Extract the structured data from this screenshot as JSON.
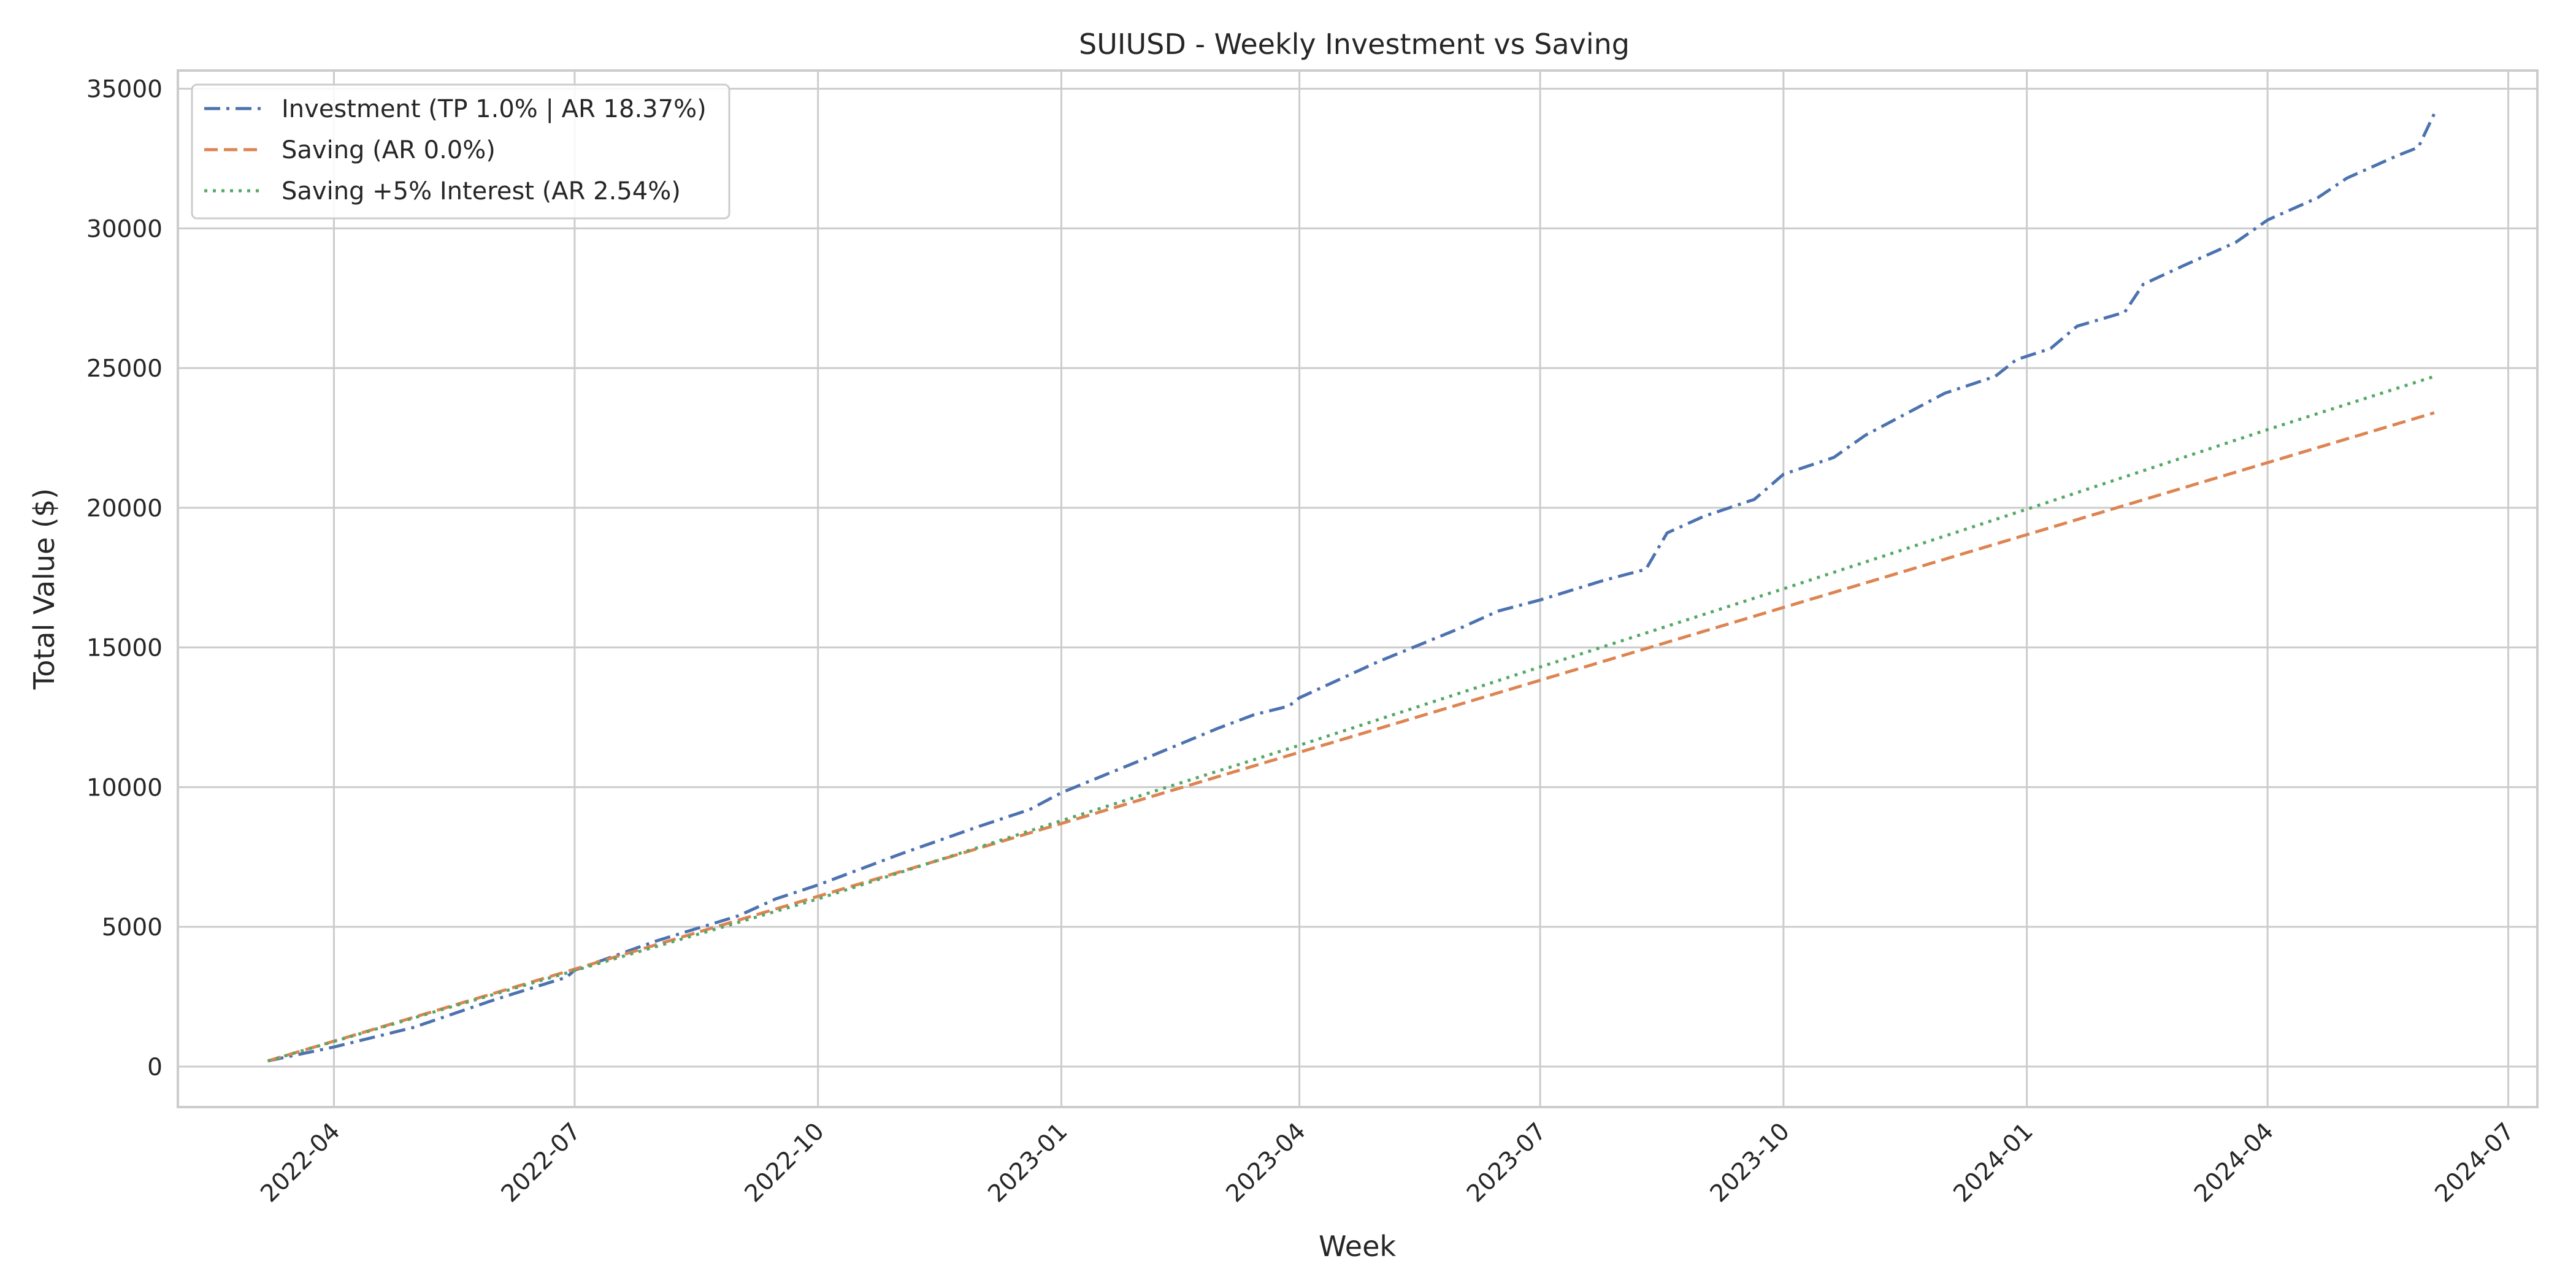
{
  "chart_data": {
    "type": "line",
    "title": "SUIUSD - Weekly Investment vs Saving",
    "xlabel": "Week",
    "ylabel": "Total Value ($)",
    "x_type": "date",
    "xlim": [
      "2022-02-01",
      "2024-07-12"
    ],
    "ylim": [
      -1450,
      35650
    ],
    "x_ticks": [
      "2022-04",
      "2022-07",
      "2022-10",
      "2023-01",
      "2023-04",
      "2023-07",
      "2023-10",
      "2024-01",
      "2024-04",
      "2024-07"
    ],
    "y_ticks": [
      0,
      5000,
      10000,
      15000,
      20000,
      25000,
      30000,
      35000
    ],
    "grid": true,
    "legend_position": "top-left",
    "series": [
      {
        "name": "Investment (TP 1.0% | AR 18.37%)",
        "color": "#4c72b0",
        "line_style": "dashdot",
        "points": [
          [
            "2022-03-07",
            200
          ],
          [
            "2022-04-01",
            700
          ],
          [
            "2022-05-01",
            1400
          ],
          [
            "2022-06-01",
            2400
          ],
          [
            "2022-06-28",
            3200
          ],
          [
            "2022-07-01",
            3450
          ],
          [
            "2022-08-01",
            4500
          ],
          [
            "2022-09-01",
            5400
          ],
          [
            "2022-09-15",
            6000
          ],
          [
            "2022-10-01",
            6500
          ],
          [
            "2022-11-01",
            7600
          ],
          [
            "2022-12-01",
            8600
          ],
          [
            "2022-12-20",
            9200
          ],
          [
            "2023-01-01",
            9800
          ],
          [
            "2023-02-01",
            11000
          ],
          [
            "2023-03-01",
            12100
          ],
          [
            "2023-03-15",
            12600
          ],
          [
            "2023-03-28",
            12900
          ],
          [
            "2023-04-01",
            13200
          ],
          [
            "2023-05-01",
            14500
          ],
          [
            "2023-06-01",
            15700
          ],
          [
            "2023-06-15",
            16300
          ],
          [
            "2023-07-01",
            16700
          ],
          [
            "2023-07-25",
            17400
          ],
          [
            "2023-08-10",
            17800
          ],
          [
            "2023-08-18",
            19100
          ],
          [
            "2023-09-01",
            19700
          ],
          [
            "2023-09-20",
            20300
          ],
          [
            "2023-10-01",
            21200
          ],
          [
            "2023-10-20",
            21800
          ],
          [
            "2023-11-01",
            22600
          ],
          [
            "2023-12-01",
            24100
          ],
          [
            "2023-12-20",
            24700
          ],
          [
            "2023-12-28",
            25300
          ],
          [
            "2024-01-10",
            25700
          ],
          [
            "2024-01-20",
            26500
          ],
          [
            "2024-02-07",
            27000
          ],
          [
            "2024-02-14",
            28000
          ],
          [
            "2024-03-01",
            28700
          ],
          [
            "2024-03-20",
            29500
          ],
          [
            "2024-04-01",
            30300
          ],
          [
            "2024-04-20",
            31100
          ],
          [
            "2024-05-01",
            31800
          ],
          [
            "2024-05-20",
            32600
          ],
          [
            "2024-05-28",
            32900
          ],
          [
            "2024-06-03",
            34100
          ]
        ]
      },
      {
        "name": "Saving (AR 0.0%)",
        "color": "#dd8452",
        "line_style": "dashed",
        "points": [
          [
            "2022-03-07",
            200
          ],
          [
            "2024-06-03",
            23400
          ]
        ]
      },
      {
        "name": "Saving +5% Interest (AR 2.54%)",
        "color": "#55a868",
        "line_style": "dotted",
        "points": [
          [
            "2022-03-07",
            200
          ],
          [
            "2022-10-01",
            6000
          ],
          [
            "2023-01-01",
            8800
          ],
          [
            "2023-04-01",
            11500
          ],
          [
            "2023-07-01",
            14300
          ],
          [
            "2023-10-01",
            17100
          ],
          [
            "2024-01-01",
            19950
          ],
          [
            "2024-04-01",
            22800
          ],
          [
            "2024-06-03",
            24700
          ]
        ]
      }
    ]
  }
}
